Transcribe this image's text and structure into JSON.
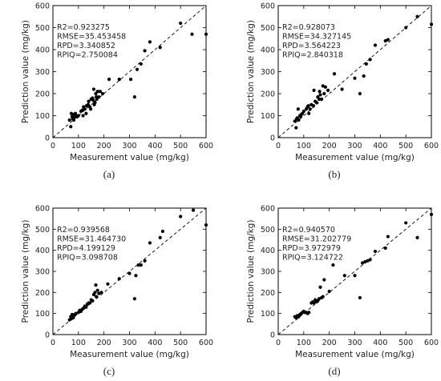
{
  "chart_data": [
    {
      "type": "scatter",
      "panel_label": "(a)",
      "xlabel": "Measurement value (mg/kg)",
      "ylabel": "Prediction value (mg/kg)",
      "xlim": [
        0,
        600
      ],
      "ylim": [
        0,
        600
      ],
      "ticks": [
        "0",
        "100",
        "200",
        "300",
        "400",
        "500",
        "600"
      ],
      "reference_line": "1:1 dashed",
      "annotations": [
        "R2=0.923275",
        "RMSE=35.453458",
        "RPD=3.340852",
        "RPIQ=2.750084"
      ],
      "points": [
        [
          65,
          80
        ],
        [
          70,
          50
        ],
        [
          72,
          110
        ],
        [
          75,
          95
        ],
        [
          78,
          85
        ],
        [
          80,
          105
        ],
        [
          82,
          80
        ],
        [
          85,
          95
        ],
        [
          88,
          110
        ],
        [
          90,
          100
        ],
        [
          95,
          95
        ],
        [
          100,
          100
        ],
        [
          110,
          120
        ],
        [
          115,
          125
        ],
        [
          118,
          100
        ],
        [
          120,
          140
        ],
        [
          125,
          130
        ],
        [
          130,
          110
        ],
        [
          132,
          145
        ],
        [
          138,
          150
        ],
        [
          140,
          165
        ],
        [
          145,
          140
        ],
        [
          148,
          130
        ],
        [
          150,
          175
        ],
        [
          155,
          180
        ],
        [
          158,
          170
        ],
        [
          160,
          220
        ],
        [
          162,
          150
        ],
        [
          165,
          160
        ],
        [
          168,
          200
        ],
        [
          170,
          185
        ],
        [
          172,
          175
        ],
        [
          175,
          210
        ],
        [
          180,
          185
        ],
        [
          185,
          210
        ],
        [
          195,
          200
        ],
        [
          220,
          265
        ],
        [
          260,
          265
        ],
        [
          305,
          265
        ],
        [
          320,
          185
        ],
        [
          330,
          310
        ],
        [
          345,
          335
        ],
        [
          360,
          395
        ],
        [
          380,
          435
        ],
        [
          420,
          410
        ],
        [
          500,
          520
        ],
        [
          545,
          470
        ],
        [
          600,
          470
        ]
      ]
    },
    {
      "type": "scatter",
      "panel_label": "(b)",
      "xlabel": "Measurement value (mg/kg)",
      "ylabel": "Prediction value (mg/kg)",
      "xlim": [
        0,
        600
      ],
      "ylim": [
        0,
        600
      ],
      "ticks": [
        "0",
        "100",
        "200",
        "300",
        "400",
        "500",
        "600"
      ],
      "reference_line": "1:1 dashed",
      "annotations": [
        "R2=0.928073",
        "RMSE=34.327145",
        "RPD=3.564223",
        "RPIQ=2.840318"
      ],
      "points": [
        [
          65,
          75
        ],
        [
          70,
          45
        ],
        [
          72,
          85
        ],
        [
          75,
          90
        ],
        [
          78,
          130
        ],
        [
          80,
          80
        ],
        [
          85,
          100
        ],
        [
          88,
          95
        ],
        [
          90,
          105
        ],
        [
          95,
          110
        ],
        [
          100,
          120
        ],
        [
          110,
          130
        ],
        [
          115,
          140
        ],
        [
          118,
          145
        ],
        [
          120,
          110
        ],
        [
          125,
          130
        ],
        [
          130,
          150
        ],
        [
          138,
          145
        ],
        [
          140,
          215
        ],
        [
          145,
          165
        ],
        [
          150,
          160
        ],
        [
          155,
          185
        ],
        [
          160,
          175
        ],
        [
          162,
          210
        ],
        [
          165,
          195
        ],
        [
          170,
          175
        ],
        [
          175,
          235
        ],
        [
          180,
          200
        ],
        [
          185,
          230
        ],
        [
          195,
          215
        ],
        [
          220,
          290
        ],
        [
          250,
          220
        ],
        [
          300,
          270
        ],
        [
          320,
          200
        ],
        [
          335,
          280
        ],
        [
          345,
          335
        ],
        [
          360,
          355
        ],
        [
          380,
          420
        ],
        [
          420,
          440
        ],
        [
          430,
          445
        ],
        [
          500,
          500
        ],
        [
          545,
          550
        ],
        [
          600,
          515
        ]
      ]
    },
    {
      "type": "scatter",
      "panel_label": "(c)",
      "xlabel": "Measurement value (mg/kg)",
      "ylabel": "Prediction value (mg/kg)",
      "xlim": [
        0,
        600
      ],
      "ylim": [
        0,
        600
      ],
      "ticks": [
        "0",
        "100",
        "200",
        "300",
        "400",
        "500",
        "600"
      ],
      "reference_line": "1:1 dashed",
      "annotations": [
        "R2=0.939568",
        "RMSE=31.464730",
        "RPD=4.199129",
        "RPIQ=3.098708"
      ],
      "points": [
        [
          65,
          70
        ],
        [
          70,
          85
        ],
        [
          72,
          75
        ],
        [
          75,
          95
        ],
        [
          78,
          90
        ],
        [
          80,
          80
        ],
        [
          85,
          95
        ],
        [
          90,
          100
        ],
        [
          100,
          105
        ],
        [
          105,
          115
        ],
        [
          110,
          110
        ],
        [
          115,
          120
        ],
        [
          120,
          125
        ],
        [
          125,
          135
        ],
        [
          130,
          130
        ],
        [
          135,
          145
        ],
        [
          140,
          150
        ],
        [
          145,
          150
        ],
        [
          150,
          165
        ],
        [
          155,
          160
        ],
        [
          160,
          190
        ],
        [
          165,
          200
        ],
        [
          168,
          235
        ],
        [
          170,
          180
        ],
        [
          175,
          210
        ],
        [
          180,
          195
        ],
        [
          190,
          200
        ],
        [
          215,
          240
        ],
        [
          260,
          265
        ],
        [
          300,
          290
        ],
        [
          320,
          170
        ],
        [
          325,
          280
        ],
        [
          335,
          330
        ],
        [
          345,
          330
        ],
        [
          360,
          350
        ],
        [
          380,
          435
        ],
        [
          420,
          460
        ],
        [
          430,
          490
        ],
        [
          500,
          560
        ],
        [
          550,
          590
        ],
        [
          600,
          520
        ]
      ]
    },
    {
      "type": "scatter",
      "panel_label": "(d)",
      "xlabel": "Measurement value (mg/kg)",
      "ylabel": "Prediction value (mg/kg)",
      "xlim": [
        0,
        600
      ],
      "ylim": [
        0,
        600
      ],
      "ticks": [
        "0",
        "100",
        "200",
        "300",
        "400",
        "500",
        "600"
      ],
      "reference_line": "1:1 dashed",
      "annotations": [
        "R2=0.940570",
        "RMSE=31.202779",
        "RPD=3.972979",
        "RPIQ=3.124722"
      ],
      "points": [
        [
          65,
          85
        ],
        [
          70,
          80
        ],
        [
          75,
          90
        ],
        [
          80,
          85
        ],
        [
          85,
          95
        ],
        [
          90,
          100
        ],
        [
          95,
          105
        ],
        [
          100,
          110
        ],
        [
          105,
          105
        ],
        [
          110,
          105
        ],
        [
          115,
          100
        ],
        [
          120,
          105
        ],
        [
          130,
          150
        ],
        [
          135,
          155
        ],
        [
          140,
          150
        ],
        [
          145,
          165
        ],
        [
          150,
          155
        ],
        [
          155,
          160
        ],
        [
          160,
          170
        ],
        [
          165,
          225
        ],
        [
          170,
          175
        ],
        [
          175,
          180
        ],
        [
          180,
          260
        ],
        [
          200,
          205
        ],
        [
          215,
          330
        ],
        [
          260,
          280
        ],
        [
          300,
          280
        ],
        [
          320,
          175
        ],
        [
          330,
          340
        ],
        [
          340,
          345
        ],
        [
          350,
          350
        ],
        [
          360,
          355
        ],
        [
          380,
          395
        ],
        [
          420,
          410
        ],
        [
          430,
          465
        ],
        [
          500,
          530
        ],
        [
          545,
          460
        ],
        [
          600,
          570
        ]
      ]
    }
  ]
}
